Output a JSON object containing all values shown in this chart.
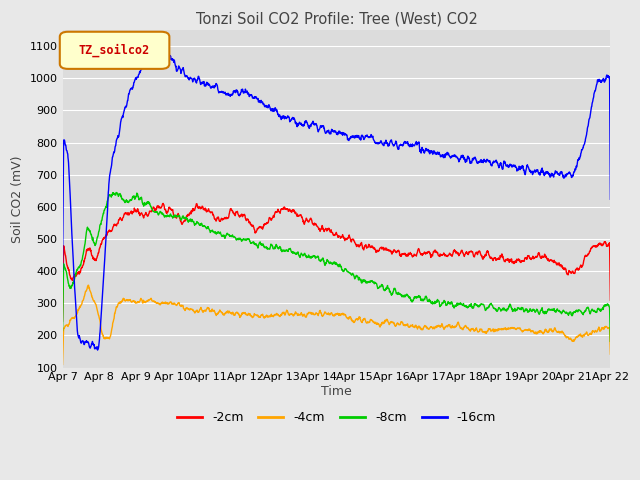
{
  "title": "Tonzi Soil CO2 Profile: Tree (West) CO2",
  "xlabel": "Time",
  "ylabel": "Soil CO2 (mV)",
  "ylim": [
    100,
    1150
  ],
  "legend_label": "TZ_soilco2",
  "series_labels": [
    "-2cm",
    "-4cm",
    "-8cm",
    "-16cm"
  ],
  "series_colors": [
    "#ff0000",
    "#ffa500",
    "#00cc00",
    "#0000ff"
  ],
  "x_tick_labels": [
    "Apr 7",
    "Apr 8",
    "Apr 9",
    "Apr 10",
    "Apr 11",
    "Apr 12",
    "Apr 13",
    "Apr 14",
    "Apr 15",
    "Apr 16",
    "Apr 17",
    "Apr 18",
    "Apr 19",
    "Apr 20",
    "Apr 21",
    "Apr 22"
  ],
  "background_color": "#e8e8e8",
  "plot_bg_color": "#dcdcdc",
  "grid_color": "#ffffff",
  "yticks": [
    100,
    200,
    300,
    400,
    500,
    600,
    700,
    800,
    900,
    1000,
    1100
  ]
}
